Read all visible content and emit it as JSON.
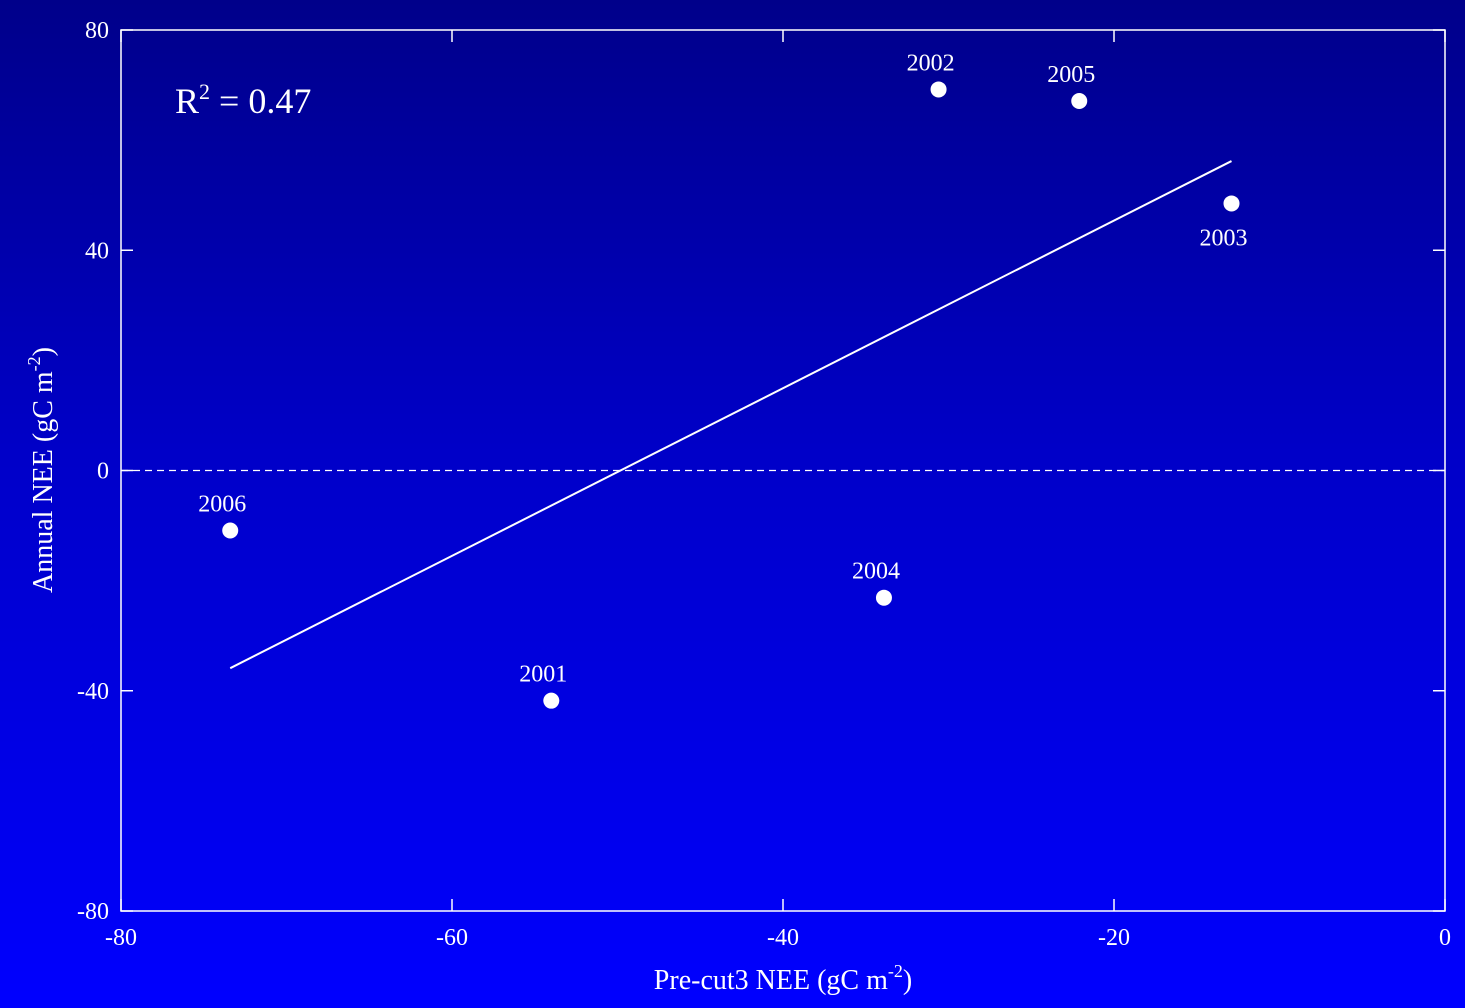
{
  "colors": {
    "background_top": "#00008a",
    "background_bottom": "#0000ff",
    "foreground": "#ffffff"
  },
  "chart_data": {
    "type": "scatter",
    "xlabel": "Pre-cut3 NEE (gC m",
    "xlabel_sup": "-2",
    "xlabel_end": ")",
    "ylabel": "Annual NEE (gC m",
    "ylabel_sup": "-2",
    "ylabel_end": ")",
    "xlim": [
      -80,
      0
    ],
    "ylim": [
      -80,
      80
    ],
    "xticks": [
      -80,
      -60,
      -40,
      -20,
      0
    ],
    "yticks": [
      -80,
      -40,
      0,
      40,
      80
    ],
    "xtick_labels": [
      "-80",
      "-60",
      "-40",
      "-20",
      "0"
    ],
    "ytick_labels": [
      "-80",
      "-40",
      "0",
      "40",
      "80"
    ],
    "grid": false,
    "annotation": {
      "prefix": "R",
      "sup": "2",
      "suffix": " = 0.47"
    },
    "points": [
      {
        "label": "2001",
        "x": -54.0,
        "y": -41.8
      },
      {
        "label": "2002",
        "x": -30.6,
        "y": 69.2
      },
      {
        "label": "2003",
        "x": -12.9,
        "y": 48.5
      },
      {
        "label": "2004",
        "x": -33.9,
        "y": -23.1
      },
      {
        "label": "2005",
        "x": -22.1,
        "y": 67.1
      },
      {
        "label": "2006",
        "x": -73.4,
        "y": -10.9
      }
    ],
    "fit_line": {
      "x": [
        -73.4,
        -12.9
      ],
      "y": [
        -35.9,
        56.2
      ]
    },
    "reference_line": {
      "y": 0,
      "style": "dashed"
    }
  }
}
